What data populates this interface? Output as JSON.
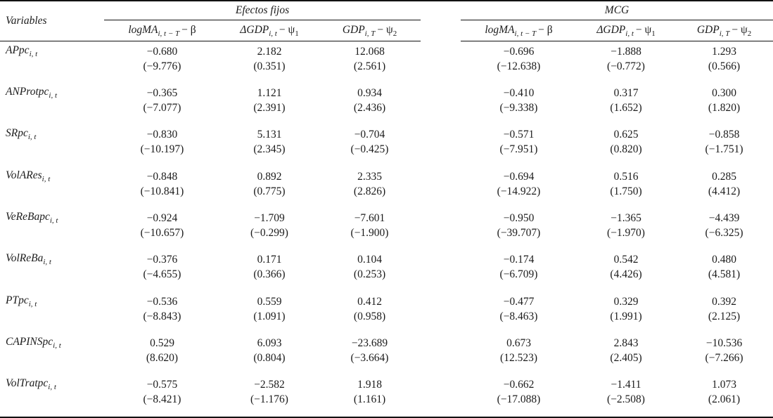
{
  "table": {
    "variables_header": "Variables",
    "groups": [
      {
        "label": "Efectos fijos"
      },
      {
        "label": "MCG"
      }
    ],
    "columns": [
      {
        "base": "logMA",
        "sub": "i, t − T",
        "rest": "− β",
        "rest_sub": ""
      },
      {
        "base": "ΔGDP",
        "sub": "i, t",
        "rest": "− ψ",
        "rest_sub": "1"
      },
      {
        "base": "GDP",
        "sub": "i, T",
        "rest": "− ψ",
        "rest_sub": "2"
      }
    ],
    "rows": [
      {
        "name": {
          "base": "APpc",
          "sub": "i, t"
        },
        "ef": [
          {
            "v": "−0.680",
            "t": "(−9.776)"
          },
          {
            "v": "2.182",
            "t": "(0.351)"
          },
          {
            "v": "12.068",
            "t": "(2.561)"
          }
        ],
        "mcg": [
          {
            "v": "−0.696",
            "t": "(−12.638)"
          },
          {
            "v": "−1.888",
            "t": "(−0.772)"
          },
          {
            "v": "1.293",
            "t": "(0.566)"
          }
        ]
      },
      {
        "name": {
          "base": "ANProtpc",
          "sub": "i, t"
        },
        "ef": [
          {
            "v": "−0.365",
            "t": "(−7.077)"
          },
          {
            "v": "1.121",
            "t": "(2.391)"
          },
          {
            "v": "0.934",
            "t": "(2.436)"
          }
        ],
        "mcg": [
          {
            "v": "−0.410",
            "t": "(−9.338)"
          },
          {
            "v": "0.317",
            "t": "(1.652)"
          },
          {
            "v": "0.300",
            "t": "(1.820)"
          }
        ]
      },
      {
        "name": {
          "base": "SRpc",
          "sub": "i, t"
        },
        "ef": [
          {
            "v": "−0.830",
            "t": "(−10.197)"
          },
          {
            "v": "5.131",
            "t": "(2.345)"
          },
          {
            "v": "−0.704",
            "t": "(−0.425)"
          }
        ],
        "mcg": [
          {
            "v": "−0.571",
            "t": "(−7.951)"
          },
          {
            "v": "0.625",
            "t": "(0.820)"
          },
          {
            "v": "−0.858",
            "t": "(−1.751)"
          }
        ]
      },
      {
        "name": {
          "base": "VolARes",
          "sub": "i, t"
        },
        "ef": [
          {
            "v": "−0.848",
            "t": "(−10.841)"
          },
          {
            "v": "0.892",
            "t": "(0.775)"
          },
          {
            "v": "2.335",
            "t": "(2.826)"
          }
        ],
        "mcg": [
          {
            "v": "−0.694",
            "t": "(−14.922)"
          },
          {
            "v": "0.516",
            "t": "(1.750)"
          },
          {
            "v": "0.285",
            "t": "(4.412)"
          }
        ]
      },
      {
        "name": {
          "base": "VeReBapc",
          "sub": "i, t"
        },
        "ef": [
          {
            "v": "−0.924",
            "t": "(−10.657)"
          },
          {
            "v": "−1.709",
            "t": "(−0.299)"
          },
          {
            "v": "−7.601",
            "t": "(−1.900)"
          }
        ],
        "mcg": [
          {
            "v": "−0.950",
            "t": "(−39.707)"
          },
          {
            "v": "−1.365",
            "t": "(−1.970)"
          },
          {
            "v": "−4.439",
            "t": "(−6.325)"
          }
        ]
      },
      {
        "name": {
          "base": "VolReBa",
          "sub": "i, t"
        },
        "ef": [
          {
            "v": "−0.376",
            "t": "(−4.655)"
          },
          {
            "v": "0.171",
            "t": "(0.366)"
          },
          {
            "v": "0.104",
            "t": "(0.253)"
          }
        ],
        "mcg": [
          {
            "v": "−0.174",
            "t": "(−6.709)"
          },
          {
            "v": "0.542",
            "t": "(4.426)"
          },
          {
            "v": "0.480",
            "t": "(4.581)"
          }
        ]
      },
      {
        "name": {
          "base": "PTpc",
          "sub": "i, t"
        },
        "ef": [
          {
            "v": "−0.536",
            "t": "(−8.843)"
          },
          {
            "v": "0.559",
            "t": "(1.091)"
          },
          {
            "v": "0.412",
            "t": "(0.958)"
          }
        ],
        "mcg": [
          {
            "v": "−0.477",
            "t": "(−8.463)"
          },
          {
            "v": "0.329",
            "t": "(1.991)"
          },
          {
            "v": "0.392",
            "t": "(2.125)"
          }
        ]
      },
      {
        "name": {
          "base": "CAPINSpc",
          "sub": "i, t"
        },
        "ef": [
          {
            "v": "0.529",
            "t": "(8.620)"
          },
          {
            "v": "6.093",
            "t": "(0.804)"
          },
          {
            "v": "−23.689",
            "t": "(−3.664)"
          }
        ],
        "mcg": [
          {
            "v": "0.673",
            "t": "(12.523)"
          },
          {
            "v": "2.843",
            "t": "(2.405)"
          },
          {
            "v": "−10.536",
            "t": "(−7.266)"
          }
        ]
      },
      {
        "name": {
          "base": "VolTratpc",
          "sub": "i, t"
        },
        "ef": [
          {
            "v": "−0.575",
            "t": "(−8.421)"
          },
          {
            "v": "−2.582",
            "t": "(−1.176)"
          },
          {
            "v": "1.918",
            "t": "(1.161)"
          }
        ],
        "mcg": [
          {
            "v": "−0.662",
            "t": "(−17.088)"
          },
          {
            "v": "−1.411",
            "t": "(−2.508)"
          },
          {
            "v": "1.073",
            "t": "(2.061)"
          }
        ]
      }
    ]
  }
}
